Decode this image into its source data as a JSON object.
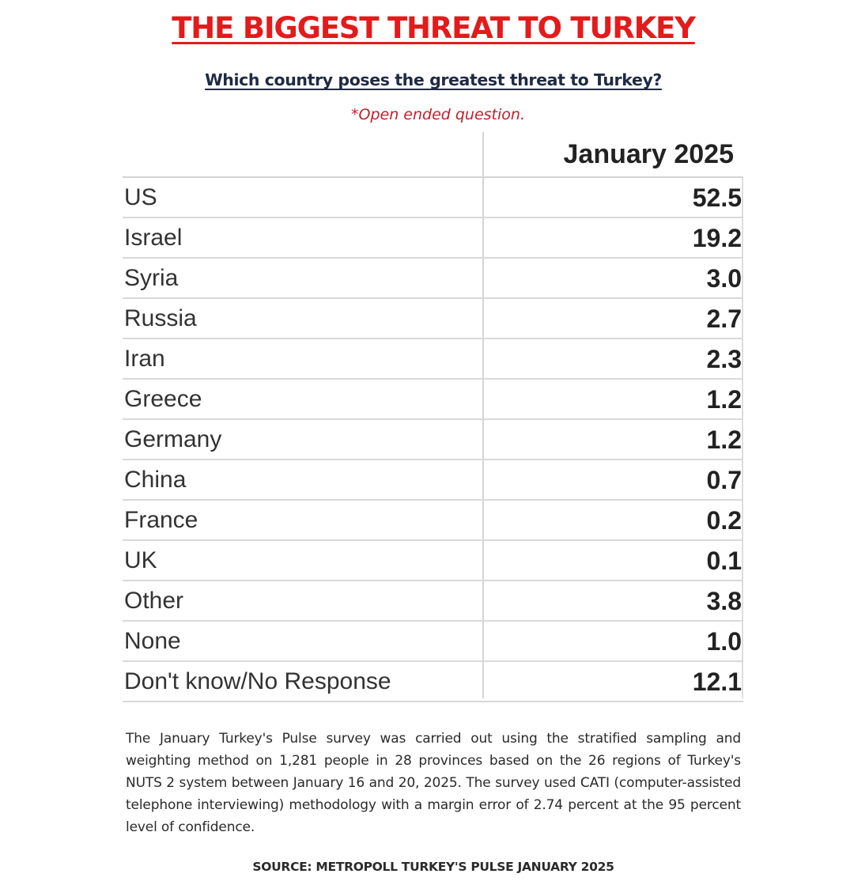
{
  "title": "THE BIGGEST THREAT TO TURKEY",
  "subtitle": "Which country poses the greatest threat to Turkey?",
  "note": "*Open ended question.",
  "methodology": "The January Turkey's Pulse survey was carried out using the stratified sampling and weighting method on 1,281 people in 28 provinces based on the 26 regions of Turkey's NUTS 2 system between January 16 and 20, 2025. The survey used CATI (computer-assisted telephone interviewing) methodology with a margin error of 2.74 percent at the 95 percent level of confidence.",
  "source": "SOURCE: METROPOLL TURKEY'S PULSE JANUARY 2025",
  "colors": {
    "title": "#e31b1b",
    "subtitle": "#1f2a44",
    "note": "#c0202a",
    "rule": "#d9d9d9"
  },
  "chart_data": {
    "type": "table",
    "title": "THE BIGGEST THREAT TO TURKEY",
    "column_header": "January 2025",
    "categories": [
      "US",
      "Israel",
      "Syria",
      "Russia",
      "Iran",
      "Greece",
      "Germany",
      "China",
      "France",
      "UK",
      "Other",
      "None",
      "Don't know/No Response"
    ],
    "values": [
      "52.5",
      "19.2",
      "3.0",
      "2.7",
      "2.3",
      "1.2",
      "1.2",
      "0.7",
      "0.2",
      "0.1",
      "3.8",
      "1.0",
      "12.1"
    ]
  }
}
